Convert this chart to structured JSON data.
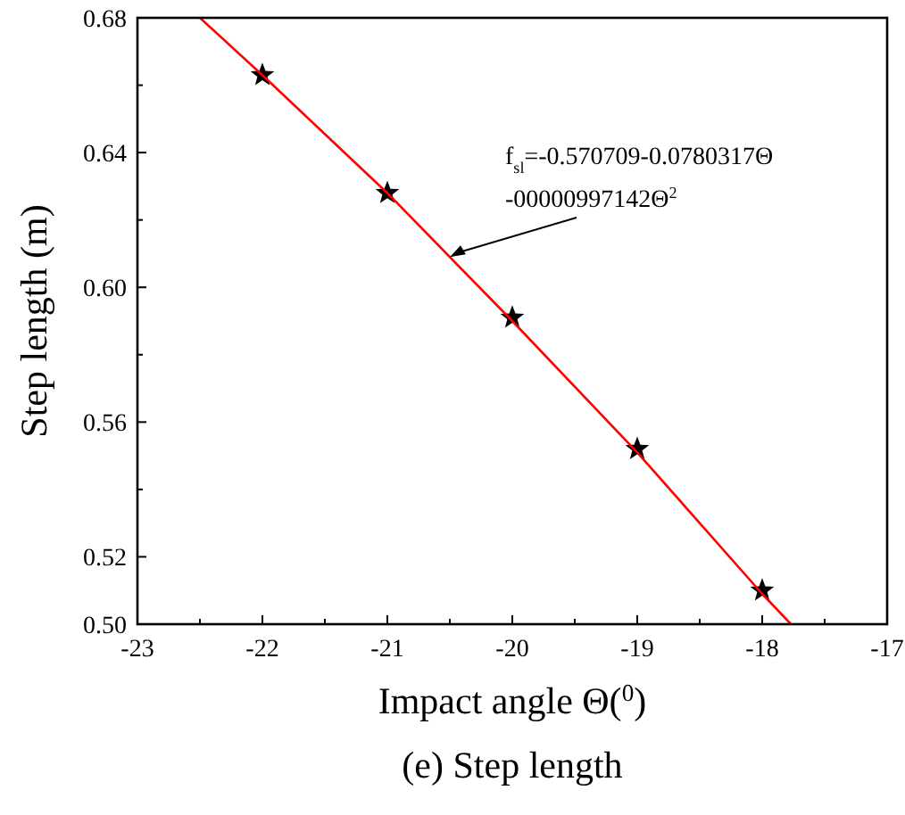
{
  "chart_data": {
    "type": "scatter",
    "title": "(e) Step length",
    "xlabel": "Impact angle Θ($^{0}$)",
    "ylabel": "Step length (m)",
    "xlim": [
      -23,
      -17
    ],
    "xticks": [
      -23,
      {
        "value": -22.5,
        "label": null
      },
      -22,
      {
        "value": -21.5,
        "label": null
      },
      -21,
      {
        "value": -20.5,
        "label": null
      },
      -20,
      {
        "value": -19.5,
        "label": null
      },
      -19,
      {
        "value": -18.5,
        "label": null
      },
      -18,
      {
        "value": -17.5,
        "label": null
      },
      -17
    ],
    "ylim": [
      0.5,
      0.68
    ],
    "yticks": [
      {
        "value": 0.5,
        "label": "0.50"
      },
      {
        "value": 0.52,
        "label": "0.52"
      },
      {
        "value": 0.54,
        "label": null
      },
      {
        "value": 0.56,
        "label": "0.56"
      },
      {
        "value": 0.58,
        "label": null
      },
      {
        "value": 0.6,
        "label": "0.60"
      },
      {
        "value": 0.62,
        "label": null
      },
      {
        "value": 0.64,
        "label": "0.64"
      },
      {
        "value": 0.66,
        "label": null
      },
      {
        "value": 0.68,
        "label": "0.68"
      }
    ],
    "series": [
      {
        "type": "scatter",
        "color": "#000000",
        "marker": "star",
        "x": [
          -22,
          -21,
          -20,
          -19,
          -18
        ],
        "values": [
          0.663,
          0.628,
          0.591,
          0.552,
          0.51
        ]
      },
      {
        "type": "line",
        "color": "#ff0000",
        "marker": "none",
        "x": [
          -22.5,
          -22,
          -21,
          -20,
          -19,
          -18,
          -17.77
        ],
        "values": [
          0.68,
          0.663,
          0.628,
          0.59,
          0.551,
          0.509,
          0.5
        ]
      }
    ],
    "annotations": [
      {
        "text": "f$_{sl}$=-0.570709-0.0780317Θ\n-00000997142Θ$^{2}$",
        "x": -20.5,
        "y": 0.609
      }
    ],
    "grid": false
  }
}
